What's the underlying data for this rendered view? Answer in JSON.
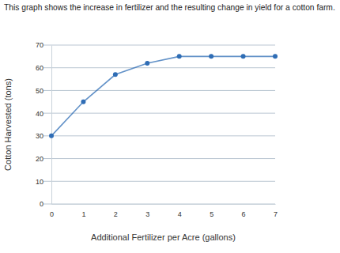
{
  "chart_data": {
    "type": "line",
    "title": "This graph shows the increase in fertilizer and the resulting change in yield for a cotton farm.",
    "x_label": "Additional Fertilizer per Acre (gallons)",
    "y_label": "Cotton Harvested (tons)",
    "x": [
      0,
      1,
      2,
      3,
      4,
      5,
      6,
      7
    ],
    "values": [
      30,
      45,
      57,
      62,
      65,
      65,
      65,
      65
    ],
    "color": "#2f6db5",
    "marker": "circle",
    "line_style": "solid",
    "xlim": [
      0,
      7
    ],
    "ylim": [
      0,
      70
    ],
    "xticks": [
      0,
      1,
      2,
      3,
      4,
      5,
      6,
      7
    ],
    "yticks": [
      0,
      10,
      20,
      30,
      40,
      50,
      60,
      70
    ],
    "grid": true
  }
}
